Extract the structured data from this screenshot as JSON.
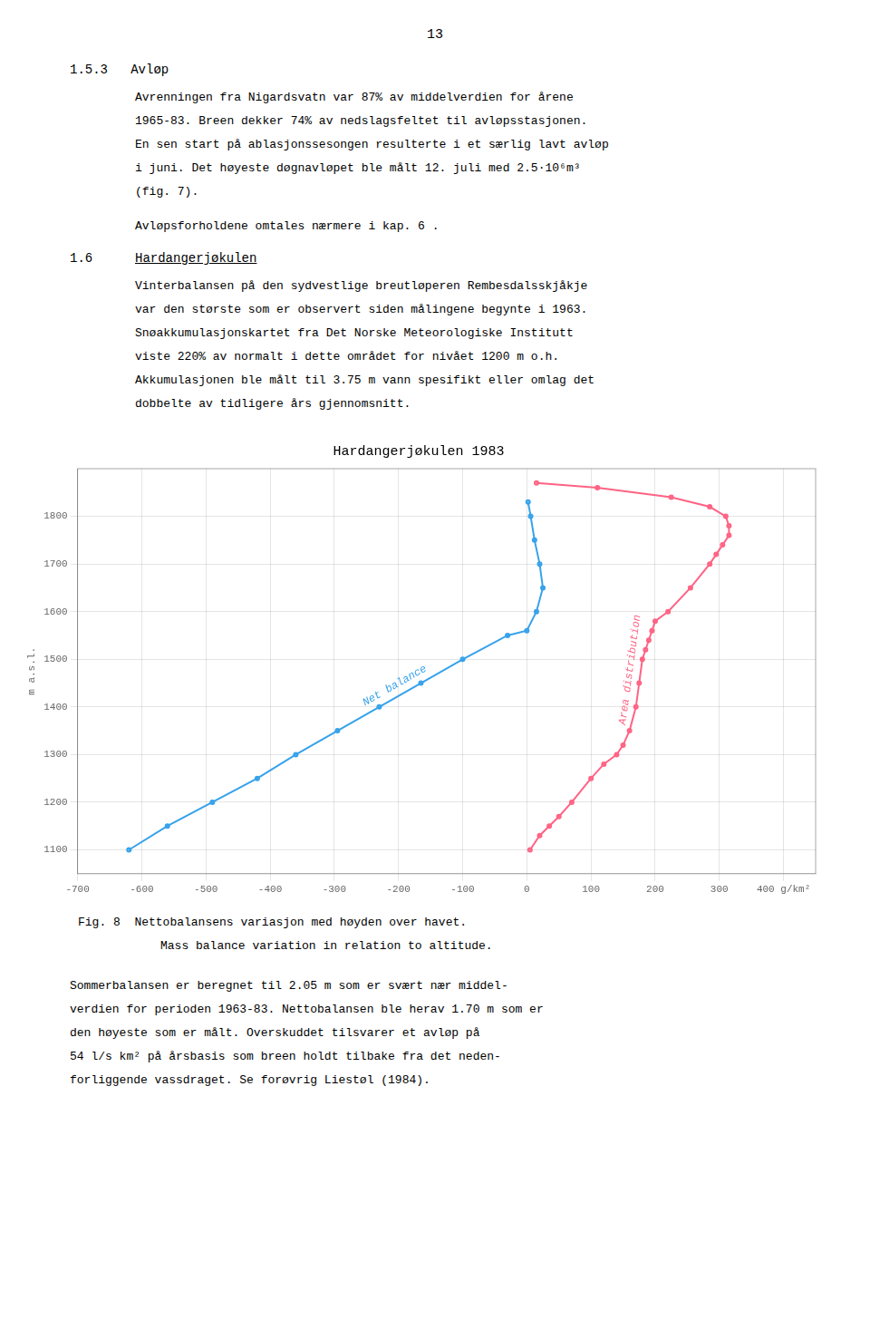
{
  "page_number": "13",
  "sections": [
    {
      "heading": "1.5.3   Avløp",
      "paragraphs": [
        [
          "Avrenningen fra Nigardsvatn var 87% av middelverdien for årene",
          "1965-83. Breen dekker 74% av nedslagsfeltet til avløpsstasjonen.",
          "En sen start på ablasjonssesongen resulterte i et særlig lavt avløp",
          "i juni. Det høyeste døgnavløpet ble målt 12. juli med 2.5·10⁶m³",
          "(fig. 7)."
        ],
        [
          "Avløpsforholdene omtales nærmere i kap. 6 ."
        ]
      ]
    },
    {
      "number": "1.6",
      "title": "Hardangerjøkulen",
      "paragraphs": [
        [
          "Vinterbalansen på den sydvestlige breutløperen Rembesdalsskjåkje",
          "var den største som er observert siden målingene begynte i 1963.",
          "Snøakkumulasjonskartet fra Det Norske Meteorologiske Institutt",
          "viste 220% av normalt i dette området for nivået 1200 m o.h.",
          "Akkumulasjonen ble målt til 3.75 m vann spesifikt eller omlag det",
          "dobbelte av tidligere års gjennomsnitt."
        ]
      ]
    }
  ],
  "chart_data": {
    "type": "line",
    "title": "Hardangerjøkulen 1983",
    "ylabel": "m a.s.l.",
    "xlim": [
      -700,
      450
    ],
    "ylim": [
      1050,
      1900
    ],
    "xticks": [
      -700,
      -600,
      -500,
      -400,
      -300,
      -200,
      -100,
      0,
      100,
      200,
      300,
      {
        "value": 400,
        "label": "400 g/km²"
      }
    ],
    "yticks": [
      1100,
      1200,
      1300,
      1400,
      1500,
      1600,
      1700,
      1800
    ],
    "grid": true,
    "series": [
      {
        "name": "Net balance",
        "x": [
          -620,
          -560,
          -490,
          -420,
          -360,
          -295,
          -230,
          -165,
          -100,
          -30,
          0,
          15,
          25,
          20,
          12,
          6,
          2
        ],
        "y": [
          1100,
          1150,
          1200,
          1250,
          1300,
          1350,
          1400,
          1450,
          1500,
          1550,
          1560,
          1600,
          1650,
          1700,
          1750,
          1800,
          1830
        ]
      },
      {
        "name": "Area distribution",
        "x": [
          5,
          20,
          35,
          50,
          70,
          100,
          120,
          140,
          150,
          160,
          170,
          175,
          180,
          185,
          190,
          195,
          200,
          220,
          255,
          285,
          295,
          305,
          315,
          315,
          310,
          285,
          225,
          110,
          15
        ],
        "y": [
          1100,
          1130,
          1150,
          1170,
          1200,
          1250,
          1280,
          1300,
          1320,
          1350,
          1400,
          1450,
          1500,
          1520,
          1540,
          1560,
          1580,
          1600,
          1650,
          1700,
          1720,
          1740,
          1760,
          1780,
          1800,
          1820,
          1840,
          1860,
          1870
        ]
      }
    ]
  },
  "caption": [
    "Fig. 8  Nettobalansens variasjon med høyden over havet.",
    "Mass balance variation in relation to altitude."
  ],
  "footer_lines": [
    "Sommerbalansen er beregnet til 2.05 m som er svært nær middel-",
    "verdien for perioden 1963-83. Nettobalansen ble herav 1.70 m som er",
    "den høyeste som er målt. Overskuddet tilsvarer et avløp på",
    "54 l/s km² på årsbasis som breen holdt tilbake fra det neden-",
    "forliggende vassdraget. Se forøvrig Liestøl (1984)."
  ]
}
